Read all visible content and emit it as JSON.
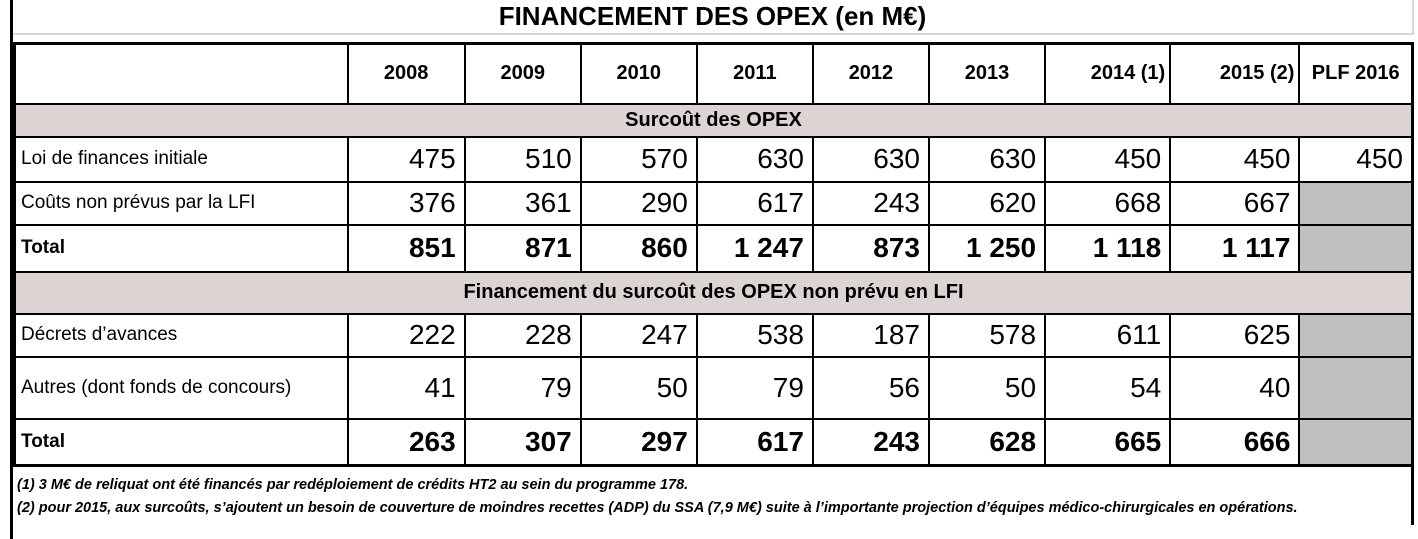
{
  "title": "FINANCEMENT DES OPEX (en M€)",
  "columns": [
    "2008",
    "2009",
    "2010",
    "2011",
    "2012",
    "2013",
    "2014 (1)",
    "2015 (2)",
    "PLF 2016"
  ],
  "sections": [
    {
      "header": "Surcoût des OPEX",
      "rows": [
        {
          "label": "Loi de finances initiale",
          "bold": false,
          "values": [
            "475",
            "510",
            "570",
            "630",
            "630",
            "630",
            "450",
            "450",
            "450"
          ]
        },
        {
          "label": "Coûts non prévus par la LFI",
          "bold": false,
          "values": [
            "376",
            "361",
            "290",
            "617",
            "243",
            "620",
            "668",
            "667",
            null
          ]
        },
        {
          "label": "Total",
          "bold": true,
          "values": [
            "851",
            "871",
            "860",
            "1 247",
            "873",
            "1 250",
            "1 118",
            "1 117",
            null
          ]
        }
      ]
    },
    {
      "header": "Financement du surcoût des OPEX non prévu en LFI",
      "rows": [
        {
          "label": "Décrets d’avances",
          "bold": false,
          "values": [
            "222",
            "228",
            "247",
            "538",
            "187",
            "578",
            "611",
            "625",
            null
          ]
        },
        {
          "label": "Autres (dont fonds de concours)",
          "bold": false,
          "values": [
            "41",
            "79",
            "50",
            "79",
            "56",
            "50",
            "54",
            "40",
            null
          ]
        },
        {
          "label": "Total",
          "bold": true,
          "values": [
            "263",
            "307",
            "297",
            "617",
            "243",
            "628",
            "665",
            "666",
            null
          ]
        }
      ]
    }
  ],
  "footnotes": [
    "(1) 3 M€ de reliquat ont été financés par redéploiement de crédits HT2 au sein du programme 178.",
    "(2) pour 2015, aux surcoûts, s’ajoutent un besoin de couverture de moindres recettes (ADP) du SSA (7,9 M€) suite à l’importante projection d’équipes médico-chirurgicales en opérations."
  ],
  "colors": {
    "section_header_bg": "#dcd3d3",
    "empty_cell_bg": "#c0c0c0",
    "border": "#000000",
    "background": "#ffffff"
  },
  "chart_data": {
    "type": "table",
    "title": "FINANCEMENT DES OPEX (en M€)",
    "unit": "M€",
    "columns": [
      "2008",
      "2009",
      "2010",
      "2011",
      "2012",
      "2013",
      "2014 (1)",
      "2015 (2)",
      "PLF 2016"
    ],
    "sections": [
      {
        "name": "Surcoût des OPEX",
        "rows": [
          {
            "label": "Loi de finances initiale",
            "values": [
              475,
              510,
              570,
              630,
              630,
              630,
              450,
              450,
              450
            ]
          },
          {
            "label": "Coûts non prévus par la LFI",
            "values": [
              376,
              361,
              290,
              617,
              243,
              620,
              668,
              667,
              null
            ]
          },
          {
            "label": "Total",
            "values": [
              851,
              871,
              860,
              1247,
              873,
              1250,
              1118,
              1117,
              null
            ]
          }
        ]
      },
      {
        "name": "Financement du surcoût des OPEX non prévu en LFI",
        "rows": [
          {
            "label": "Décrets d’avances",
            "values": [
              222,
              228,
              247,
              538,
              187,
              578,
              611,
              625,
              null
            ]
          },
          {
            "label": "Autres (dont fonds de concours)",
            "values": [
              41,
              79,
              50,
              79,
              56,
              50,
              54,
              40,
              null
            ]
          },
          {
            "label": "Total",
            "values": [
              263,
              307,
              297,
              617,
              243,
              628,
              665,
              666,
              null
            ]
          }
        ]
      }
    ]
  }
}
